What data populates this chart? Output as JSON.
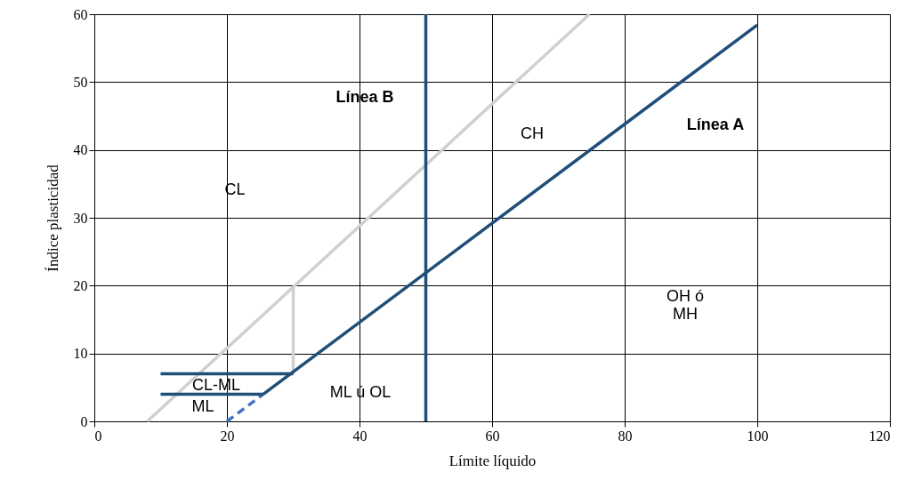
{
  "chart_data": {
    "type": "line",
    "xlabel": "Límite líquido",
    "ylabel": "Índice plasticidad",
    "xlim": [
      0,
      120
    ],
    "xticks": [
      0,
      20,
      40,
      60,
      80,
      100,
      120
    ],
    "ylim": [
      0,
      60
    ],
    "yticks": [
      0,
      10,
      20,
      30,
      40,
      50,
      60
    ],
    "grid": true,
    "marker": "none",
    "series": [
      {
        "color": "#d0d0d0",
        "x": [
          8,
          74.7
        ],
        "values": [
          0,
          60
        ]
      },
      {
        "color": "#d0d0d0",
        "x": [
          30,
          30
        ],
        "values": [
          7,
          19.8
        ]
      },
      {
        "color": "#1f4e79",
        "x": [
          25.5,
          100
        ],
        "values": [
          4,
          58.4
        ]
      },
      {
        "color": "#4472c4",
        "line_style": "dashed",
        "x": [
          20,
          25.5
        ],
        "values": [
          0,
          4
        ]
      },
      {
        "color": "#1f4e79",
        "x": [
          10,
          30
        ],
        "values": [
          7,
          7
        ]
      },
      {
        "color": "#1f4e79",
        "x": [
          10,
          25.5
        ],
        "values": [
          4,
          4
        ]
      },
      {
        "color": "#1f4e79",
        "x": [
          50,
          50
        ],
        "values": [
          0,
          60
        ]
      }
    ],
    "annotations": [
      "Línea B",
      "CH",
      "Línea A",
      "CL",
      "OH ó\nMH",
      "CL-ML",
      "ML",
      "ML ú OL"
    ]
  }
}
